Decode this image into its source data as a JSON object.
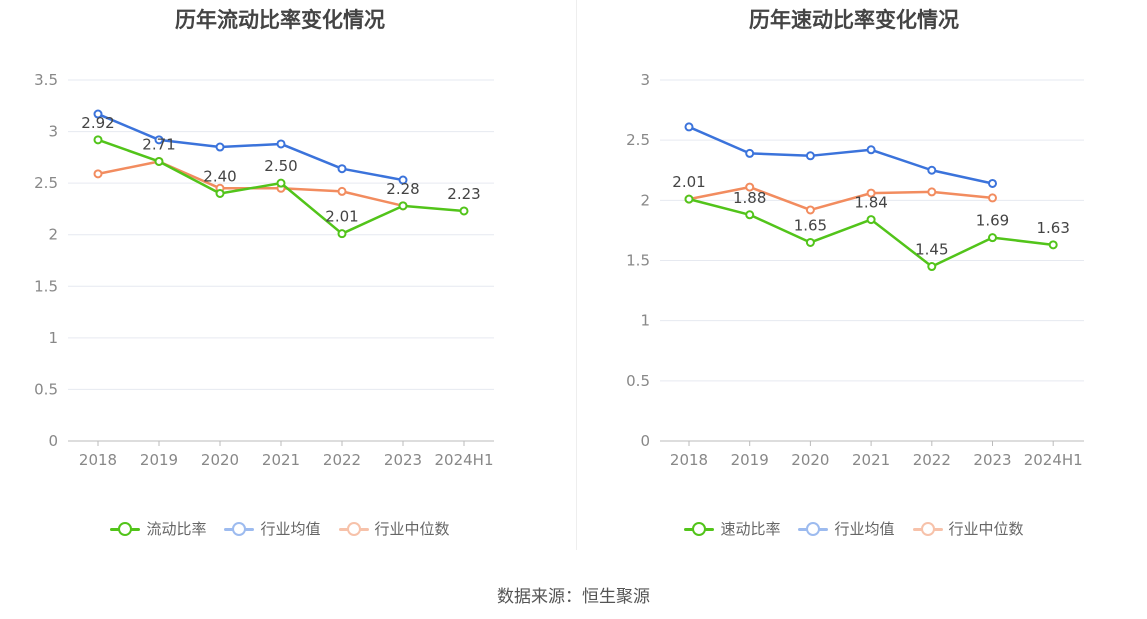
{
  "chart_data": [
    {
      "type": "line",
      "title": "历年流动比率变化情况",
      "categories": [
        "2018",
        "2019",
        "2020",
        "2021",
        "2022",
        "2023",
        "2024H1"
      ],
      "ylim": [
        0,
        3.5
      ],
      "yticks": [
        "0",
        "0.5",
        "1",
        "1.5",
        "2",
        "2.5",
        "3",
        "3.5"
      ],
      "grid": true,
      "legend_position": "bottom",
      "series": [
        {
          "name": "流动比率",
          "color": "#52c41a",
          "values": [
            2.92,
            2.71,
            2.4,
            2.5,
            2.01,
            2.28,
            2.23
          ],
          "labels": [
            "2.92",
            "2.71",
            "2.40",
            "2.50",
            "2.01",
            "2.28",
            "2.23"
          ]
        },
        {
          "name": "行业均值",
          "color": "#3b73db",
          "values": [
            3.17,
            2.92,
            2.85,
            2.88,
            2.64,
            2.53,
            null
          ]
        },
        {
          "name": "行业中位数",
          "color": "#f28c5f",
          "values": [
            2.59,
            2.71,
            2.45,
            2.45,
            2.42,
            2.28,
            null
          ]
        }
      ]
    },
    {
      "type": "line",
      "title": "历年速动比率变化情况",
      "categories": [
        "2018",
        "2019",
        "2020",
        "2021",
        "2022",
        "2023",
        "2024H1"
      ],
      "ylim": [
        0,
        3
      ],
      "yticks": [
        "0",
        "0.5",
        "1",
        "1.5",
        "2",
        "2.5",
        "3"
      ],
      "grid": true,
      "legend_position": "bottom",
      "series": [
        {
          "name": "速动比率",
          "color": "#52c41a",
          "values": [
            2.01,
            1.88,
            1.65,
            1.84,
            1.45,
            1.69,
            1.63
          ],
          "labels": [
            "2.01",
            "1.88",
            "1.65",
            "1.84",
            "1.45",
            "1.69",
            "1.63"
          ]
        },
        {
          "name": "行业均值",
          "color": "#3b73db",
          "values": [
            2.61,
            2.39,
            2.37,
            2.42,
            2.25,
            2.14,
            null
          ]
        },
        {
          "name": "行业中位数",
          "color": "#f28c5f",
          "values": [
            2.01,
            2.11,
            1.92,
            2.06,
            2.07,
            2.02,
            null
          ]
        }
      ]
    }
  ],
  "source": "数据来源：恒生聚源"
}
